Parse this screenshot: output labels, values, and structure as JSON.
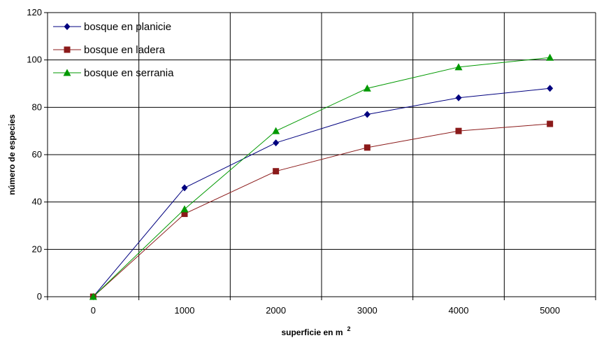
{
  "chart_data": {
    "type": "line",
    "x": [
      0,
      1000,
      2000,
      3000,
      4000,
      5000
    ],
    "x_tick_labels": [
      "0",
      "1000",
      "2000",
      "3000",
      "4000",
      "5000"
    ],
    "y_tick_labels": [
      "0",
      "20",
      "40",
      "60",
      "80",
      "100",
      "120"
    ],
    "ylim": [
      0,
      120
    ],
    "grid": true,
    "legend_position": "top-left",
    "xlabel": "superficie en m",
    "xlabel_superscript": "2",
    "ylabel": "número de especies",
    "series": [
      {
        "name": "bosque en planicie",
        "values": [
          0,
          46,
          65,
          77,
          84,
          88
        ],
        "color": "#00007f",
        "marker": "diamond"
      },
      {
        "name": "bosque en ladera",
        "values": [
          0,
          35,
          53,
          63,
          70,
          73
        ],
        "color": "#8b1a1a",
        "marker": "square"
      },
      {
        "name": "bosque en serrania",
        "values": [
          0,
          37,
          70,
          88,
          97,
          101
        ],
        "color": "#009900",
        "marker": "triangle"
      }
    ]
  }
}
